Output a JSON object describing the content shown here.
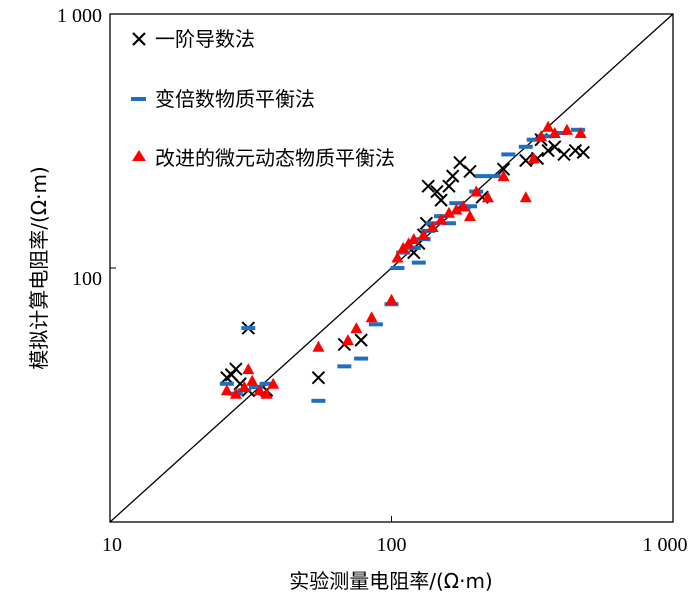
{
  "chart_data": {
    "type": "scatter",
    "title": "",
    "xlabel": "实验测量电阻率/(Ω·m)",
    "ylabel": "模拟计算电阻率/(Ω·m)",
    "xscale": "log",
    "yscale": "log",
    "xlim": [
      10,
      1000
    ],
    "ylim": [
      10,
      1000
    ],
    "x_ticks": [
      "10",
      "100",
      "1 000"
    ],
    "y_ticks": [
      "100",
      "1 000"
    ],
    "reference_line": "y = x",
    "legend_position": "top-left",
    "colors": {
      "series1": "#000000",
      "series2": "#1f6fc0",
      "series3": "#ff0000"
    },
    "series": [
      {
        "name": "一阶导数法",
        "marker": "x",
        "points": [
          [
            26,
            37
          ],
          [
            27,
            38
          ],
          [
            28,
            40
          ],
          [
            29,
            35
          ],
          [
            31,
            58
          ],
          [
            31,
            33
          ],
          [
            34,
            33
          ],
          [
            36,
            33
          ],
          [
            55,
            37
          ],
          [
            68,
            50
          ],
          [
            78,
            52
          ],
          [
            120,
            115
          ],
          [
            125,
            125
          ],
          [
            130,
            135
          ],
          [
            133,
            150
          ],
          [
            135,
            210
          ],
          [
            145,
            200
          ],
          [
            150,
            185
          ],
          [
            160,
            210
          ],
          [
            165,
            230
          ],
          [
            175,
            260
          ],
          [
            190,
            240
          ],
          [
            210,
            190
          ],
          [
            250,
            245
          ],
          [
            300,
            265
          ],
          [
            330,
            270
          ],
          [
            340,
            320
          ],
          [
            360,
            290
          ],
          [
            380,
            300
          ],
          [
            410,
            280
          ],
          [
            450,
            290
          ],
          [
            480,
            285
          ]
        ]
      },
      {
        "name": "变倍数物质平衡法",
        "marker": "dash",
        "points": [
          [
            26,
            35
          ],
          [
            28,
            32
          ],
          [
            30,
            33
          ],
          [
            31,
            58
          ],
          [
            33,
            34
          ],
          [
            36,
            35
          ],
          [
            55,
            30
          ],
          [
            68,
            41
          ],
          [
            78,
            44
          ],
          [
            88,
            60
          ],
          [
            100,
            72
          ],
          [
            105,
            100
          ],
          [
            110,
            115
          ],
          [
            120,
            120
          ],
          [
            125,
            105
          ],
          [
            130,
            130
          ],
          [
            135,
            140
          ],
          [
            140,
            150
          ],
          [
            150,
            160
          ],
          [
            160,
            150
          ],
          [
            170,
            180
          ],
          [
            180,
            170
          ],
          [
            190,
            175
          ],
          [
            200,
            200
          ],
          [
            210,
            230
          ],
          [
            230,
            230
          ],
          [
            260,
            280
          ],
          [
            300,
            300
          ],
          [
            320,
            320
          ],
          [
            350,
            330
          ],
          [
            400,
            340
          ],
          [
            460,
            350
          ]
        ]
      },
      {
        "name": "改进的微元动态物质平衡法",
        "marker": "triangle",
        "points": [
          [
            26,
            33
          ],
          [
            28,
            32
          ],
          [
            30,
            34
          ],
          [
            31,
            40
          ],
          [
            32,
            36
          ],
          [
            34,
            33
          ],
          [
            36,
            32
          ],
          [
            38,
            35
          ],
          [
            55,
            49
          ],
          [
            70,
            52
          ],
          [
            75,
            58
          ],
          [
            85,
            64
          ],
          [
            100,
            75
          ],
          [
            105,
            110
          ],
          [
            110,
            120
          ],
          [
            115,
            125
          ],
          [
            120,
            130
          ],
          [
            130,
            135
          ],
          [
            140,
            145
          ],
          [
            150,
            155
          ],
          [
            160,
            165
          ],
          [
            170,
            170
          ],
          [
            180,
            175
          ],
          [
            190,
            160
          ],
          [
            200,
            200
          ],
          [
            220,
            190
          ],
          [
            250,
            230
          ],
          [
            300,
            190
          ],
          [
            320,
            270
          ],
          [
            340,
            330
          ],
          [
            360,
            360
          ],
          [
            380,
            340
          ],
          [
            420,
            350
          ],
          [
            470,
            340
          ]
        ]
      }
    ]
  }
}
